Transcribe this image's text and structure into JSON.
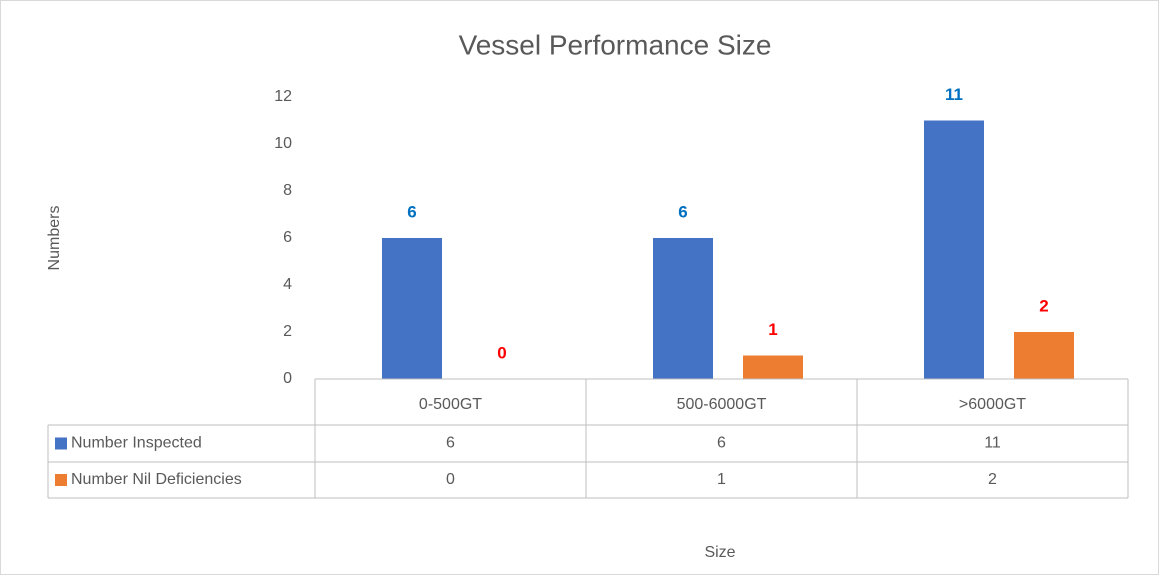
{
  "chart_data": {
    "type": "bar",
    "title": "Vessel Performance Size",
    "x_label": "Size",
    "y_label": "Numbers",
    "categories": [
      "0-500GT",
      "500-6000GT",
      ">6000GT"
    ],
    "series": [
      {
        "name": "Number Inspected",
        "color": "#4472c4",
        "label_color": "#0070c0",
        "values": [
          6,
          6,
          11
        ]
      },
      {
        "name": "Number Nil Deficiencies",
        "color": "#ed7d31",
        "label_color": "#ff0000",
        "values": [
          0,
          1,
          2
        ]
      }
    ],
    "ylim": [
      0,
      12
    ],
    "yticks": [
      0,
      2,
      4,
      6,
      8,
      10,
      12
    ],
    "grid": false,
    "data_table": true
  }
}
